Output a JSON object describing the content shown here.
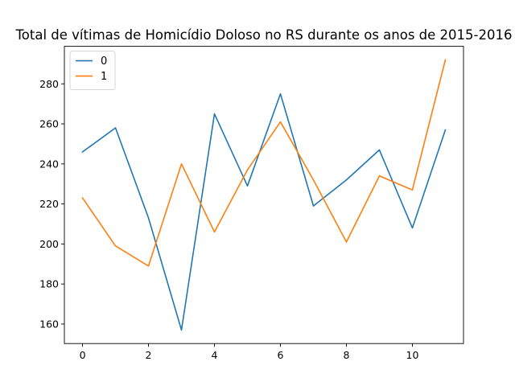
{
  "chart_data": {
    "type": "line",
    "title": "Total de vítimas de Homicídio Doloso no RS durante os anos de 2015-2016",
    "xlabel": "",
    "ylabel": "",
    "x": [
      0,
      1,
      2,
      3,
      4,
      5,
      6,
      7,
      8,
      9,
      10,
      11
    ],
    "series": [
      {
        "name": "0",
        "color": "#1f77b4",
        "values": [
          246,
          258,
          213,
          157,
          265,
          229,
          275,
          219,
          232,
          247,
          208,
          257
        ]
      },
      {
        "name": "1",
        "color": "#ff7f0e",
        "values": [
          223,
          199,
          189,
          240,
          206,
          237,
          261,
          232,
          201,
          234,
          227,
          292
        ]
      }
    ],
    "xlim": [
      -0.55,
      11.55
    ],
    "ylim": [
      150.25,
      298.75
    ],
    "xticks": [
      0,
      2,
      4,
      6,
      8,
      10
    ],
    "yticks": [
      160,
      180,
      200,
      220,
      240,
      260,
      280
    ],
    "grid": false,
    "legend_position": "upper-left"
  }
}
